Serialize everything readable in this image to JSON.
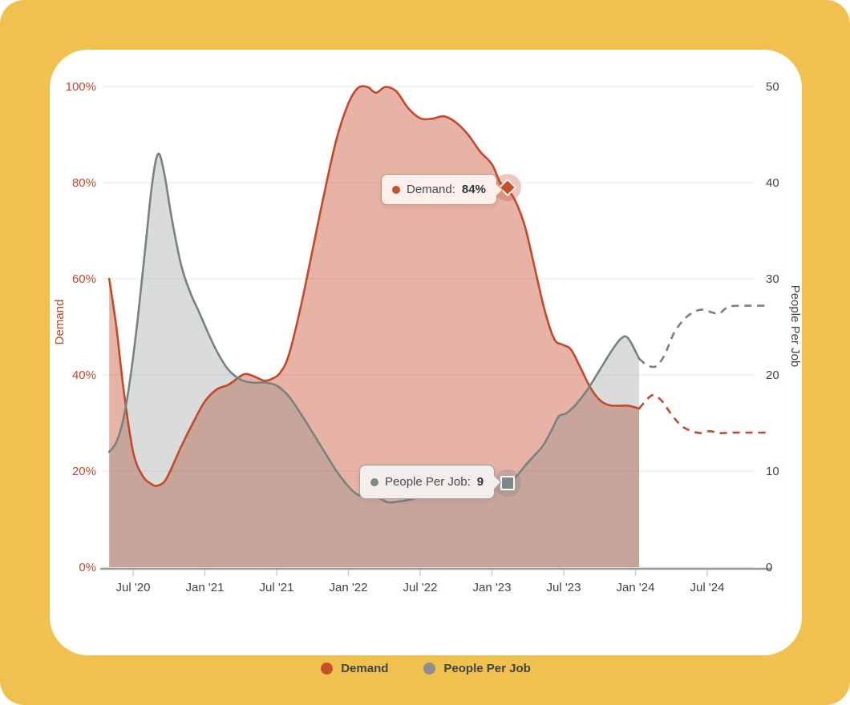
{
  "page": {
    "background_color": "#F1C14F",
    "card_background": "#FFFFFF"
  },
  "chart_data": {
    "type": "area",
    "title": "",
    "x_encoding": "t = months since Jan 2020; axis ticks every 6 months",
    "x_ticks": [
      {
        "t": 6,
        "label": "Jul '20"
      },
      {
        "t": 12,
        "label": "Jan '21"
      },
      {
        "t": 18,
        "label": "Jul '21"
      },
      {
        "t": 24,
        "label": "Jan '22"
      },
      {
        "t": 30,
        "label": "Jul '22"
      },
      {
        "t": 36,
        "label": "Jan '23"
      },
      {
        "t": 42,
        "label": "Jul '23"
      },
      {
        "t": 48,
        "label": "Jan '24"
      },
      {
        "t": 54,
        "label": "Jul '24"
      }
    ],
    "left_axis": {
      "label": "Demand",
      "ticks": [
        "0%",
        "20%",
        "40%",
        "60%",
        "80%",
        "100%"
      ],
      "range": [
        0,
        100
      ],
      "color": "#C0462A"
    },
    "right_axis": {
      "label": "People Per Job",
      "ticks": [
        "0",
        "10",
        "20",
        "30",
        "40",
        "50"
      ],
      "range": [
        0,
        50
      ],
      "color": "#3E4448"
    },
    "grid": true,
    "legend_position": "bottom-center",
    "series": [
      {
        "name": "Demand",
        "axis": "left",
        "color": "#C4492B",
        "fill": "rgba(196,73,42,0.42)",
        "solid": [
          [
            4,
            60
          ],
          [
            4.6,
            50
          ],
          [
            5.2,
            37
          ],
          [
            6,
            24
          ],
          [
            6.8,
            19
          ],
          [
            7.6,
            17.2
          ],
          [
            8.1,
            17
          ],
          [
            8.8,
            18.5
          ],
          [
            10,
            25
          ],
          [
            11,
            30
          ],
          [
            12,
            34.5
          ],
          [
            13,
            37
          ],
          [
            14,
            38
          ],
          [
            15,
            39.8
          ],
          [
            15.5,
            40.2
          ],
          [
            16.2,
            39.6
          ],
          [
            17,
            38.8
          ],
          [
            17.7,
            39.3
          ],
          [
            18.3,
            40.5
          ],
          [
            19,
            44
          ],
          [
            20,
            54
          ],
          [
            21,
            66
          ],
          [
            22,
            78
          ],
          [
            23,
            89
          ],
          [
            24,
            96.5
          ],
          [
            24.8,
            99.7
          ],
          [
            25.6,
            99.9
          ],
          [
            26.3,
            98.7
          ],
          [
            27.1,
            99.9
          ],
          [
            28,
            99
          ],
          [
            29,
            95.5
          ],
          [
            30,
            93.4
          ],
          [
            31,
            93.3
          ],
          [
            32,
            93.8
          ],
          [
            33,
            92.5
          ],
          [
            34,
            90
          ],
          [
            35,
            86.5
          ],
          [
            36,
            83.8
          ],
          [
            36.7,
            80
          ],
          [
            37.3,
            78.7
          ],
          [
            38,
            76
          ],
          [
            38.8,
            70.5
          ],
          [
            39.6,
            62
          ],
          [
            40.4,
            53.5
          ],
          [
            41.2,
            47.5
          ],
          [
            41.9,
            46.3
          ],
          [
            42.6,
            45.3
          ],
          [
            43.4,
            41.5
          ],
          [
            44.2,
            37.5
          ],
          [
            45,
            34.8
          ],
          [
            45.8,
            33.7
          ],
          [
            46.6,
            33.6
          ],
          [
            47.4,
            33.6
          ],
          [
            48.3,
            33
          ]
        ],
        "forecast": [
          [
            48.3,
            33
          ],
          [
            49,
            35
          ],
          [
            49.5,
            35.8
          ],
          [
            50.2,
            34.6
          ],
          [
            51,
            31.8
          ],
          [
            51.8,
            29.5
          ],
          [
            52.6,
            28.4
          ],
          [
            53.4,
            27.9
          ],
          [
            54.2,
            28.3
          ],
          [
            55,
            27.9
          ],
          [
            56,
            28
          ],
          [
            57,
            28
          ],
          [
            58,
            28
          ],
          [
            59.2,
            28
          ]
        ],
        "marker": {
          "t": 37.3,
          "value": 78.7,
          "shape": "diamond"
        }
      },
      {
        "name": "People Per Job",
        "axis": "right",
        "color": "#78827F",
        "fill": "rgba(122,131,128,0.28)",
        "solid": [
          [
            4,
            12
          ],
          [
            4.6,
            13
          ],
          [
            5.2,
            15.5
          ],
          [
            5.8,
            20
          ],
          [
            6.4,
            26
          ],
          [
            7,
            33
          ],
          [
            7.6,
            40
          ],
          [
            8.1,
            43
          ],
          [
            8.6,
            41
          ],
          [
            9.2,
            36.5
          ],
          [
            10,
            31.5
          ],
          [
            10.8,
            28.5
          ],
          [
            11.6,
            26.3
          ],
          [
            12.4,
            24
          ],
          [
            13.2,
            22
          ],
          [
            14,
            20.5
          ],
          [
            15,
            19.5
          ],
          [
            16,
            19.2
          ],
          [
            17,
            19.2
          ],
          [
            18,
            18.9
          ],
          [
            19,
            17.8
          ],
          [
            20,
            16
          ],
          [
            21,
            14
          ],
          [
            22,
            12
          ],
          [
            23,
            10
          ],
          [
            24,
            8.4
          ],
          [
            24.7,
            7.6
          ],
          [
            25.4,
            7.4
          ],
          [
            26,
            7.7
          ],
          [
            26.6,
            7.2
          ],
          [
            27.3,
            6.75
          ],
          [
            28,
            6.8
          ],
          [
            29,
            7
          ],
          [
            30,
            7.3
          ],
          [
            31,
            7.6
          ],
          [
            32,
            7.9
          ],
          [
            33,
            8.1
          ],
          [
            34,
            8.3
          ],
          [
            35,
            8.5
          ],
          [
            36,
            8.6
          ],
          [
            37.3,
            8.75
          ],
          [
            38,
            9.4
          ],
          [
            38.8,
            10.6
          ],
          [
            39.6,
            11.7
          ],
          [
            40.3,
            12.7
          ],
          [
            41,
            14.3
          ],
          [
            41.6,
            15.7
          ],
          [
            42.2,
            16
          ],
          [
            43,
            16.9
          ],
          [
            44,
            18.5
          ],
          [
            45,
            20.5
          ],
          [
            46,
            22.5
          ],
          [
            46.8,
            23.8
          ],
          [
            47.4,
            23.8
          ],
          [
            48.3,
            21.7
          ]
        ],
        "forecast": [
          [
            48.3,
            21.7
          ],
          [
            49,
            21
          ],
          [
            49.7,
            20.9
          ],
          [
            50.4,
            22
          ],
          [
            51.2,
            24.3
          ],
          [
            52,
            25.7
          ],
          [
            52.8,
            26.5
          ],
          [
            53.6,
            26.8
          ],
          [
            54.4,
            26.5
          ],
          [
            55,
            26.4
          ],
          [
            55.8,
            27.1
          ],
          [
            57,
            27.2
          ],
          [
            58,
            27.2
          ],
          [
            59.2,
            27.2
          ]
        ],
        "marker": {
          "t": 37.3,
          "value": 8.75,
          "shape": "square"
        }
      }
    ]
  },
  "tooltips": {
    "demand": {
      "label": "Demand:",
      "value": "84%",
      "dot_color": "#C4502E"
    },
    "people": {
      "label": "People Per Job:",
      "value": "9",
      "dot_color": "#7E8886"
    }
  },
  "legend": {
    "items": [
      {
        "label": "Demand",
        "color": "#C4502E"
      },
      {
        "label": "People Per Job",
        "color": "#8A908D"
      }
    ]
  }
}
